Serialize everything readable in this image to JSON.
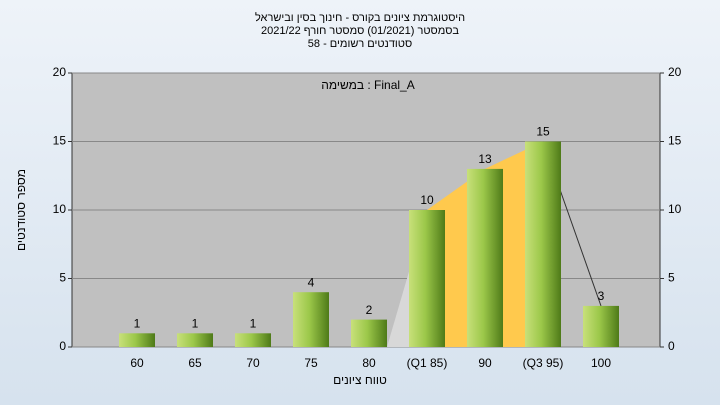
{
  "chart_data": {
    "type": "bar",
    "title": [
      "היסטוגרמת ציונים בקורס - חינוך בסין ובישראל",
      "בסמסטר  (01/2021)  סמסטר חורף 2021/22",
      "סטודנטים רשומים - 58"
    ],
    "annotation": "במשימה : Final_A",
    "x_label": "טווח ציונים",
    "y_label": "מספר סטודנטים",
    "categories": [
      "60",
      "65",
      "70",
      "75",
      "80",
      "(Q1 85)",
      "90",
      "(Q3 95)",
      "100"
    ],
    "values": [
      1,
      1,
      1,
      4,
      2,
      10,
      13,
      15,
      3
    ],
    "color": "#8cbf3f",
    "ylim": [
      0,
      20
    ],
    "yticks": [
      0,
      5,
      10,
      15,
      20
    ],
    "y2lim": [
      0,
      20
    ],
    "y2ticks": [
      0,
      5,
      10,
      15,
      20
    ],
    "grid": true
  }
}
